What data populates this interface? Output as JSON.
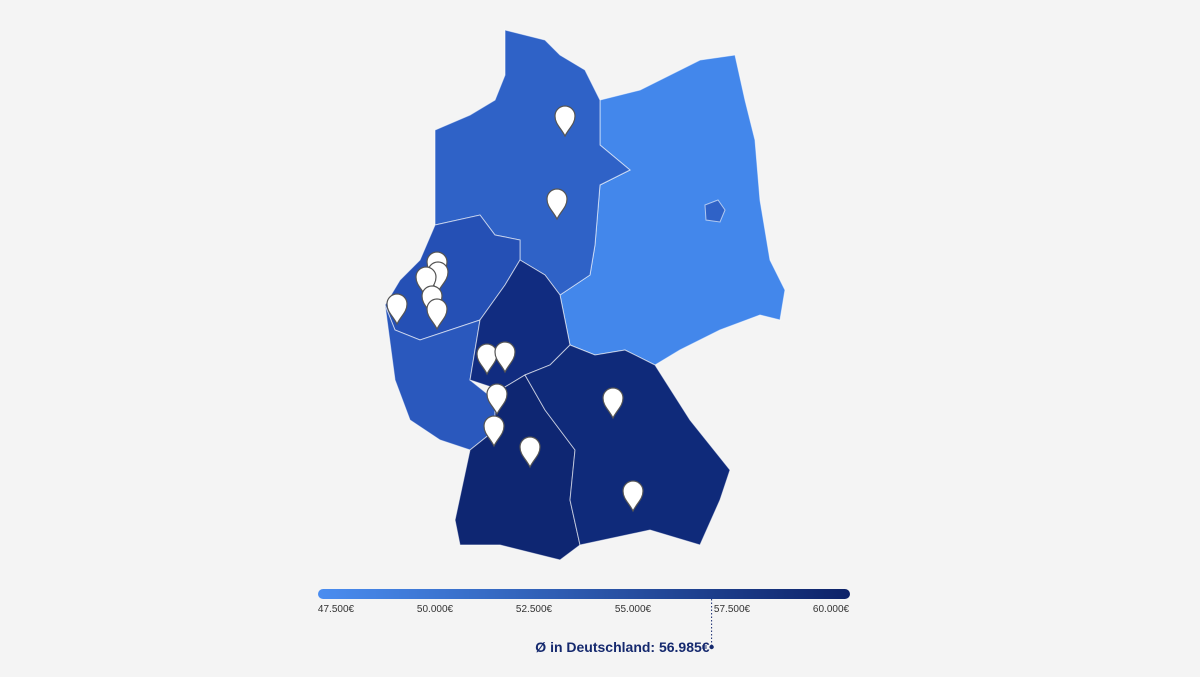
{
  "legend": {
    "ticks": [
      {
        "value": 47500,
        "label": "47.500€"
      },
      {
        "value": 50000,
        "label": "50.000€"
      },
      {
        "value": 52500,
        "label": "52.500€"
      },
      {
        "value": 55000,
        "label": "55.000€"
      },
      {
        "value": 57500,
        "label": "57.500€"
      },
      {
        "value": 60000,
        "label": "60.000€"
      }
    ]
  },
  "average": {
    "value": 56985,
    "label": "Ø in Deutschland: 56.985€"
  }
}
